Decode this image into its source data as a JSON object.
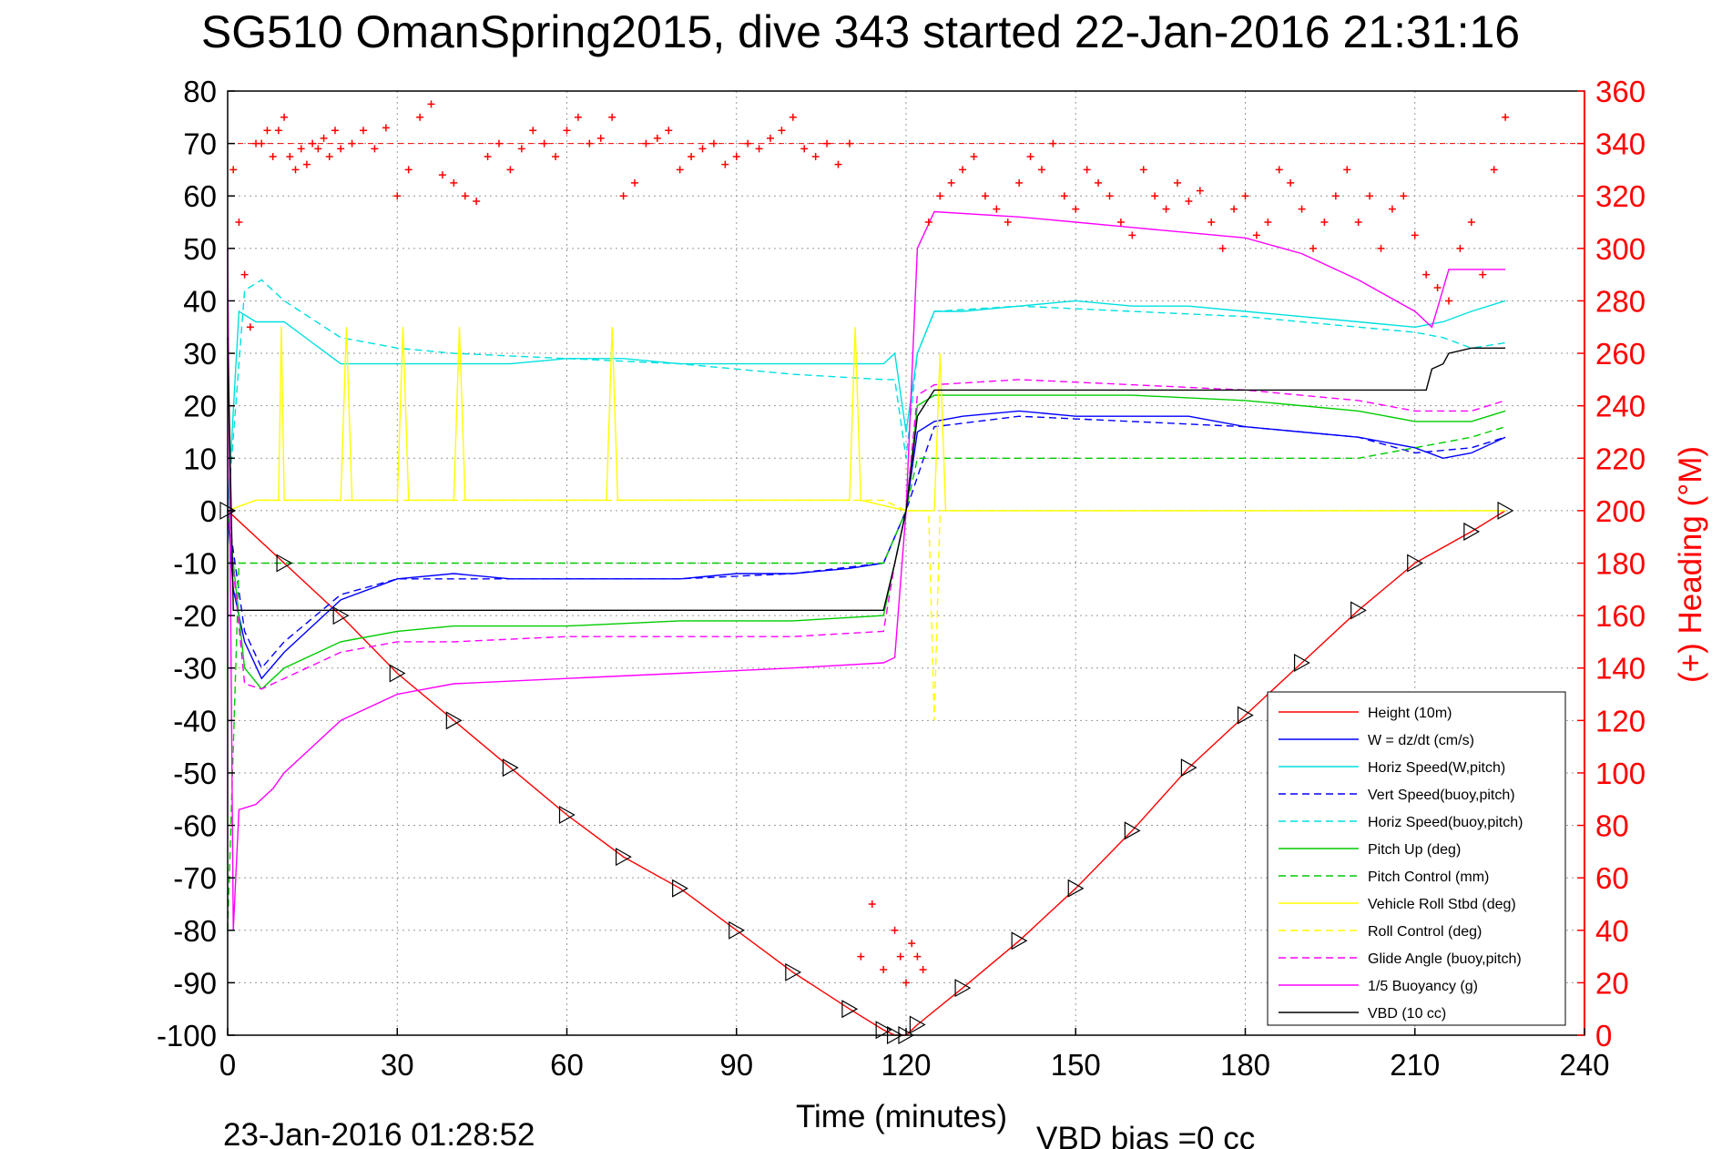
{
  "chart_data": {
    "type": "line",
    "title": "SG510 OmanSpring2015, dive 343 started 22-Jan-2016 21:31:16",
    "xlabel": "Time (minutes)",
    "ylabel": "",
    "y2label": "(+) Heading (°M)",
    "xlim": [
      0,
      240
    ],
    "ylim": [
      -100,
      80
    ],
    "y2lim": [
      0,
      360
    ],
    "xticks": [
      "0",
      "30",
      "60",
      "90",
      "120",
      "150",
      "180",
      "210",
      "240"
    ],
    "yticks": [
      "80",
      "70",
      "60",
      "50",
      "40",
      "30",
      "20",
      "10",
      "0",
      "-10",
      "-20",
      "-30",
      "-40",
      "-50",
      "-60",
      "-70",
      "-80",
      "-90",
      "-100"
    ],
    "y2ticks": [
      "360",
      "340",
      "320",
      "300",
      "280",
      "260",
      "240",
      "220",
      "200",
      "180",
      "160",
      "140",
      "120",
      "100",
      "80",
      "60",
      "40",
      "20",
      "0"
    ],
    "grid": true,
    "legend_position": "bottom-right",
    "footer_time": "23-Jan-2016 01:28:52",
    "footer_bias": "VBD bias =0 cc",
    "series": [
      {
        "name": "Height (10m)",
        "color": "#ff0000",
        "style": "solid",
        "x": [
          0,
          10,
          20,
          30,
          40,
          50,
          60,
          70,
          80,
          90,
          100,
          110,
          116,
          118,
          120,
          122,
          130,
          140,
          150,
          160,
          170,
          180,
          190,
          200,
          210,
          220,
          226
        ],
        "y": [
          0,
          -10,
          -20,
          -31,
          -40,
          -49,
          -58,
          -66,
          -72,
          -80,
          -88,
          -95,
          -99,
          -100,
          -100,
          -98,
          -91,
          -82,
          -72,
          -61,
          -49,
          -39,
          -29,
          -19,
          -10,
          -4,
          0
        ]
      },
      {
        "name": "W = dz/dt (cm/s)",
        "color": "#0000ff",
        "style": "solid",
        "x": [
          0,
          1,
          3,
          6,
          10,
          15,
          20,
          30,
          40,
          50,
          60,
          70,
          80,
          90,
          100,
          110,
          116,
          118,
          120,
          122,
          125,
          130,
          140,
          150,
          160,
          170,
          180,
          190,
          200,
          210,
          215,
          220,
          226
        ],
        "y": [
          0,
          -15,
          -25,
          -32,
          -27,
          -22,
          -17,
          -13,
          -12,
          -13,
          -13,
          -13,
          -13,
          -12,
          -12,
          -11,
          -10,
          -5,
          0,
          15,
          17,
          18,
          19,
          18,
          18,
          18,
          16,
          15,
          14,
          12,
          10,
          11,
          14
        ]
      },
      {
        "name": "Horiz Speed(W,pitch)",
        "color": "#00e0e0",
        "style": "solid",
        "x": [
          0,
          2,
          5,
          10,
          15,
          20,
          30,
          40,
          50,
          60,
          70,
          80,
          90,
          100,
          110,
          116,
          118,
          120,
          122,
          125,
          130,
          140,
          150,
          160,
          170,
          180,
          190,
          200,
          210,
          215,
          220,
          226
        ],
        "y": [
          0,
          38,
          36,
          36,
          32,
          28,
          28,
          28,
          28,
          29,
          29,
          28,
          28,
          28,
          28,
          28,
          30,
          15,
          30,
          38,
          38,
          39,
          40,
          39,
          39,
          38,
          37,
          36,
          35,
          36,
          38,
          40
        ]
      },
      {
        "name": "Vert Speed(buoy,pitch)",
        "color": "#0000ff",
        "style": "dashed",
        "x": [
          0,
          3,
          6,
          10,
          20,
          30,
          40,
          60,
          80,
          100,
          116,
          120,
          125,
          140,
          160,
          180,
          200,
          210,
          220,
          226
        ],
        "y": [
          0,
          -23,
          -30,
          -25,
          -16,
          -13,
          -13,
          -13,
          -13,
          -12,
          -10,
          0,
          16,
          18,
          17,
          16,
          14,
          11,
          12,
          14
        ]
      },
      {
        "name": "Horiz Speed(buoy,pitch)",
        "color": "#00e0e0",
        "style": "dashed",
        "x": [
          0,
          3,
          6,
          10,
          20,
          30,
          40,
          60,
          80,
          100,
          116,
          118,
          120,
          122,
          125,
          140,
          160,
          180,
          200,
          210,
          215,
          220,
          226
        ],
        "y": [
          0,
          42,
          44,
          40,
          33,
          31,
          30,
          29,
          28,
          26,
          25,
          25,
          10,
          30,
          38,
          39,
          38,
          37,
          35,
          34,
          33,
          31,
          32
        ]
      },
      {
        "name": "Pitch Up (deg)",
        "color": "#00cc00",
        "style": "solid",
        "x": [
          0,
          3,
          6,
          10,
          20,
          30,
          40,
          60,
          80,
          100,
          116,
          118,
          120,
          122,
          125,
          140,
          160,
          180,
          200,
          210,
          220,
          226
        ],
        "y": [
          0,
          -30,
          -34,
          -30,
          -25,
          -23,
          -22,
          -22,
          -21,
          -21,
          -20,
          -10,
          0,
          20,
          22,
          22,
          22,
          21,
          19,
          17,
          17,
          19
        ]
      },
      {
        "name": "Pitch Control (mm)",
        "color": "#00cc00",
        "style": "dashed",
        "x": [
          0,
          2,
          3,
          10,
          30,
          60,
          90,
          116,
          118,
          120,
          122,
          125,
          140,
          160,
          180,
          200,
          210,
          220,
          226
        ],
        "y": [
          -80,
          -10,
          -10,
          -10,
          -10,
          -10,
          -10,
          -10,
          -5,
          0,
          10,
          10,
          10,
          10,
          10,
          10,
          12,
          14,
          16
        ]
      },
      {
        "name": "Vehicle Roll Stbd (deg)",
        "color": "#ffff00",
        "style": "solid",
        "x": [
          0,
          5,
          9,
          9.5,
          10,
          20,
          21,
          22,
          30,
          31,
          32,
          40,
          41,
          42,
          60,
          67,
          68,
          69,
          90,
          110,
          111,
          112,
          120,
          125,
          126,
          127,
          150,
          180,
          200,
          210,
          220,
          226
        ],
        "y": [
          0,
          2,
          2,
          35,
          2,
          2,
          35,
          2,
          2,
          35,
          2,
          2,
          35,
          2,
          2,
          2,
          35,
          2,
          2,
          2,
          35,
          2,
          0,
          0,
          30,
          0,
          0,
          0,
          0,
          0,
          0,
          0
        ]
      },
      {
        "name": "Roll Control (deg)",
        "color": "#ffff00",
        "style": "dashed",
        "x": [
          0,
          5,
          10,
          20,
          30,
          40,
          60,
          80,
          100,
          116,
          120,
          124,
          125,
          126,
          140,
          160,
          180,
          200,
          210,
          220,
          226
        ],
        "y": [
          0,
          2,
          2,
          2,
          2,
          2,
          2,
          2,
          2,
          2,
          0,
          0,
          -40,
          0,
          0,
          0,
          0,
          0,
          0,
          0,
          0
        ]
      },
      {
        "name": "Glide Angle (buoy,pitch)",
        "color": "#ff00ff",
        "style": "dashed",
        "x": [
          0,
          3,
          6,
          10,
          20,
          30,
          40,
          60,
          80,
          100,
          116,
          118,
          120,
          122,
          125,
          140,
          160,
          180,
          200,
          210,
          220,
          226
        ],
        "y": [
          0,
          -33,
          -34,
          -32,
          -27,
          -25,
          -25,
          -24,
          -24,
          -24,
          -23,
          -10,
          0,
          22,
          24,
          25,
          24,
          23,
          21,
          19,
          19,
          21
        ]
      },
      {
        "name": "1/5 Buoyancy (g)",
        "color": "#ff00ff",
        "style": "solid",
        "x": [
          0,
          1,
          2,
          5,
          8,
          10,
          15,
          20,
          30,
          40,
          60,
          80,
          100,
          116,
          118,
          120,
          122,
          125,
          140,
          150,
          160,
          170,
          180,
          190,
          200,
          210,
          213,
          216,
          220,
          226
        ],
        "y": [
          50,
          -80,
          -57,
          -56,
          -53,
          -50,
          -45,
          -40,
          -35,
          -33,
          -32,
          -31,
          -30,
          -29,
          -28,
          0,
          50,
          57,
          56,
          55,
          54,
          53,
          52,
          49,
          44,
          38,
          35,
          46,
          46,
          46
        ]
      },
      {
        "name": "VBD (10 cc)",
        "color": "#000000",
        "style": "solid",
        "x": [
          0,
          1,
          3,
          10,
          30,
          60,
          90,
          116,
          118,
          120,
          122,
          125,
          150,
          180,
          200,
          210,
          212,
          213,
          215,
          216,
          220,
          226
        ],
        "y": [
          33,
          -19,
          -19,
          -19,
          -19,
          -19,
          -19,
          -19,
          -10,
          0,
          18,
          23,
          23,
          23,
          23,
          23,
          23,
          27,
          28,
          30,
          31,
          31
        ]
      }
    ],
    "heading_series": {
      "name": "Heading",
      "color": "#ff0000",
      "marker": "+",
      "x": [
        1,
        2,
        3,
        4,
        5,
        6,
        7,
        8,
        9,
        10,
        11,
        12,
        13,
        14,
        15,
        16,
        17,
        18,
        19,
        20,
        22,
        24,
        26,
        28,
        30,
        32,
        34,
        36,
        38,
        40,
        42,
        44,
        46,
        48,
        50,
        52,
        54,
        56,
        58,
        60,
        62,
        64,
        66,
        68,
        70,
        72,
        74,
        76,
        78,
        80,
        82,
        84,
        86,
        88,
        90,
        92,
        94,
        96,
        98,
        100,
        102,
        104,
        106,
        108,
        110,
        112,
        114,
        116,
        118,
        119,
        120,
        121,
        122,
        123,
        124,
        126,
        128,
        130,
        132,
        134,
        136,
        138,
        140,
        142,
        144,
        146,
        148,
        150,
        152,
        154,
        156,
        158,
        160,
        162,
        164,
        166,
        168,
        170,
        172,
        174,
        176,
        178,
        180,
        182,
        184,
        186,
        188,
        190,
        192,
        194,
        196,
        198,
        200,
        202,
        204,
        206,
        208,
        210,
        212,
        214,
        216,
        218,
        220,
        222,
        224,
        226
      ],
      "y": [
        330,
        310,
        290,
        270,
        340,
        340,
        345,
        335,
        345,
        350,
        335,
        330,
        338,
        332,
        340,
        338,
        342,
        335,
        345,
        338,
        340,
        345,
        338,
        346,
        320,
        330,
        350,
        355,
        328,
        325,
        320,
        318,
        335,
        340,
        330,
        338,
        345,
        340,
        335,
        345,
        350,
        340,
        342,
        350,
        320,
        325,
        340,
        342,
        345,
        330,
        335,
        338,
        340,
        332,
        335,
        340,
        338,
        342,
        345,
        350,
        338,
        335,
        340,
        332,
        340,
        30,
        50,
        25,
        40,
        30,
        20,
        35,
        30,
        25,
        310,
        320,
        325,
        330,
        335,
        320,
        315,
        310,
        325,
        335,
        330,
        340,
        320,
        315,
        330,
        325,
        320,
        310,
        305,
        330,
        320,
        315,
        325,
        318,
        322,
        310,
        300,
        315,
        320,
        305,
        310,
        330,
        325,
        315,
        300,
        310,
        320,
        330,
        310,
        320,
        300,
        315,
        320,
        305,
        290,
        285,
        280,
        300,
        310,
        290,
        330,
        350
      ]
    }
  }
}
